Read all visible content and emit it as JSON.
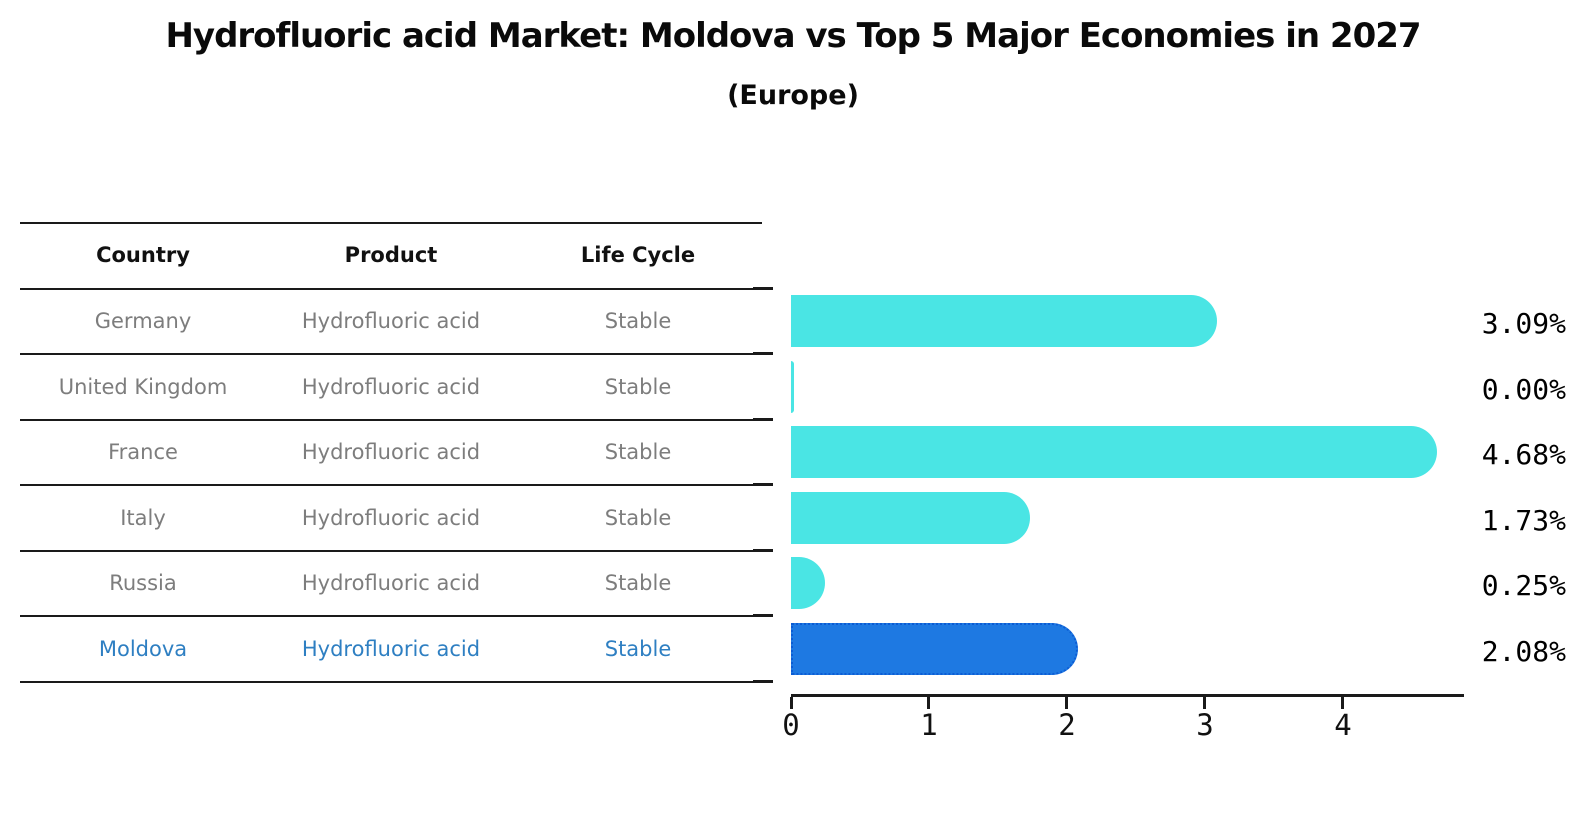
{
  "title": "Hydrofluoric acid Market: Moldova vs Top 5 Major Economies in 2027",
  "subtitle": "(Europe)",
  "table": {
    "headers": {
      "country": "Country",
      "product": "Product",
      "life_cycle": "Life Cycle"
    },
    "rows": [
      {
        "country": "Germany",
        "product": "Hydrofluoric acid",
        "life_cycle": "Stable"
      },
      {
        "country": "United Kingdom",
        "product": "Hydrofluoric acid",
        "life_cycle": "Stable"
      },
      {
        "country": "France",
        "product": "Hydrofluoric acid",
        "life_cycle": "Stable"
      },
      {
        "country": "Italy",
        "product": "Hydrofluoric acid",
        "life_cycle": "Stable"
      },
      {
        "country": "Russia",
        "product": "Hydrofluoric acid",
        "life_cycle": "Stable"
      },
      {
        "country": "Moldova",
        "product": "Hydrofluoric acid",
        "life_cycle": "Stable"
      }
    ],
    "highlight_row_index": 5
  },
  "chart_data": {
    "type": "bar",
    "orientation": "horizontal",
    "categories": [
      "Germany",
      "United Kingdom",
      "France",
      "Italy",
      "Russia",
      "Moldova"
    ],
    "values": [
      3.09,
      0.0,
      4.68,
      1.73,
      0.25,
      2.08
    ],
    "value_labels": [
      "3.09%",
      "0.00%",
      "4.68%",
      "1.73%",
      "0.25%",
      "2.08%"
    ],
    "x_ticks": [
      0,
      1,
      2,
      3,
      4
    ],
    "x_tick_labels": [
      "0",
      "1",
      "2",
      "3",
      "4"
    ],
    "xlim": [
      0,
      4.87
    ],
    "grid": false,
    "legend": null,
    "highlight_index": 5,
    "title": "Hydrofluoric acid Market: Moldova vs Top 5 Major Economies in 2027",
    "subtitle": "(Europe)"
  },
  "colors": {
    "bar": "#4AE5E4",
    "highlight_bar": "#1E79E2",
    "highlight_bar_border": "#0C5CD4",
    "highlight_text": "#2E7FC2",
    "table_text": "#7D7D7D",
    "header_text": "#111111",
    "axis": "#1A1A1A",
    "value_label": "#000000"
  }
}
